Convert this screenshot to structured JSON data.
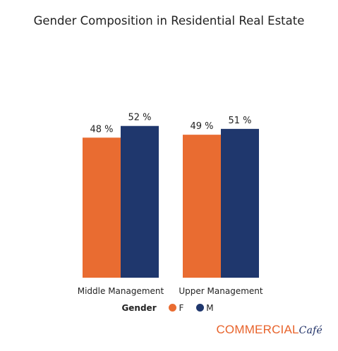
{
  "chart_data": {
    "type": "bar",
    "title": "Gender Composition in Residential Real Estate",
    "categories": [
      "Middle Management",
      "Upper Management"
    ],
    "series": [
      {
        "name": "F",
        "values": [
          48,
          49
        ],
        "color": "#e96c31"
      },
      {
        "name": "M",
        "values": [
          52,
          51
        ],
        "color": "#1f376d"
      }
    ],
    "data_labels": [
      [
        "48 %",
        "49 %"
      ],
      [
        "52 %",
        "51 %"
      ]
    ],
    "legend_title": "Gender",
    "legend_position": "bottom-center",
    "grid": false,
    "ylim": [
      0,
      100
    ]
  },
  "brand": {
    "part1": "COMMERCIAL",
    "part2": "Café"
  }
}
